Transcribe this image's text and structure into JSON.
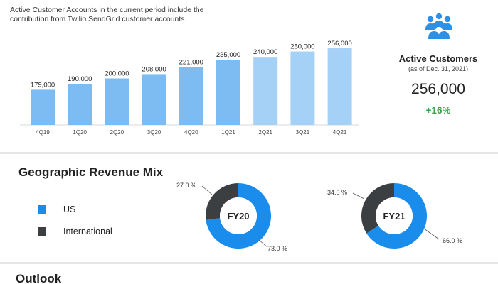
{
  "note": "Active Customer Accounts in the current period include the contribution from Twilio SendGrid customer accounts",
  "kpi": {
    "icon": "people-group-icon",
    "title": "Active Customers",
    "subtitle": "(as of Dec. 31, 2021)",
    "value": "256,000",
    "change": "+16%"
  },
  "geo": {
    "title": "Geographic Revenue Mix",
    "legend": [
      {
        "label": "US",
        "color": "#1a8ceb"
      },
      {
        "label": "International",
        "color": "#3c3f42"
      }
    ]
  },
  "outlook": {
    "title": "Outlook"
  },
  "colors": {
    "bar": "#7dbcf2",
    "bar_light": "#a6d1f7",
    "us": "#1a8ceb",
    "international": "#3c3f42",
    "change_positive": "#3aa44a"
  },
  "chart_data": [
    {
      "type": "bar",
      "categories": [
        "4Q19",
        "1Q20",
        "2Q20",
        "3Q20",
        "4Q20",
        "1Q21",
        "2Q21",
        "3Q21",
        "4Q21"
      ],
      "values": [
        179000,
        190000,
        200000,
        208000,
        221000,
        235000,
        240000,
        250000,
        256000
      ],
      "value_labels": [
        "179,000",
        "190,000",
        "200,000",
        "208,000",
        "221,000",
        "235,000",
        "240,000",
        "250,000",
        "256,000"
      ],
      "title": "",
      "xlabel": "",
      "ylabel": "",
      "ylim": [
        0,
        260000
      ],
      "grid": false,
      "legend": "none"
    },
    {
      "type": "pie",
      "center_label": "FY20",
      "slices": [
        {
          "name": "US",
          "value": 73.0,
          "label": "73.0 %"
        },
        {
          "name": "International",
          "value": 27.0,
          "label": "27.0 %"
        }
      ]
    },
    {
      "type": "pie",
      "center_label": "FY21",
      "slices": [
        {
          "name": "US",
          "value": 66.0,
          "label": "66.0 %"
        },
        {
          "name": "International",
          "value": 34.0,
          "label": "34.0 %"
        }
      ]
    }
  ]
}
